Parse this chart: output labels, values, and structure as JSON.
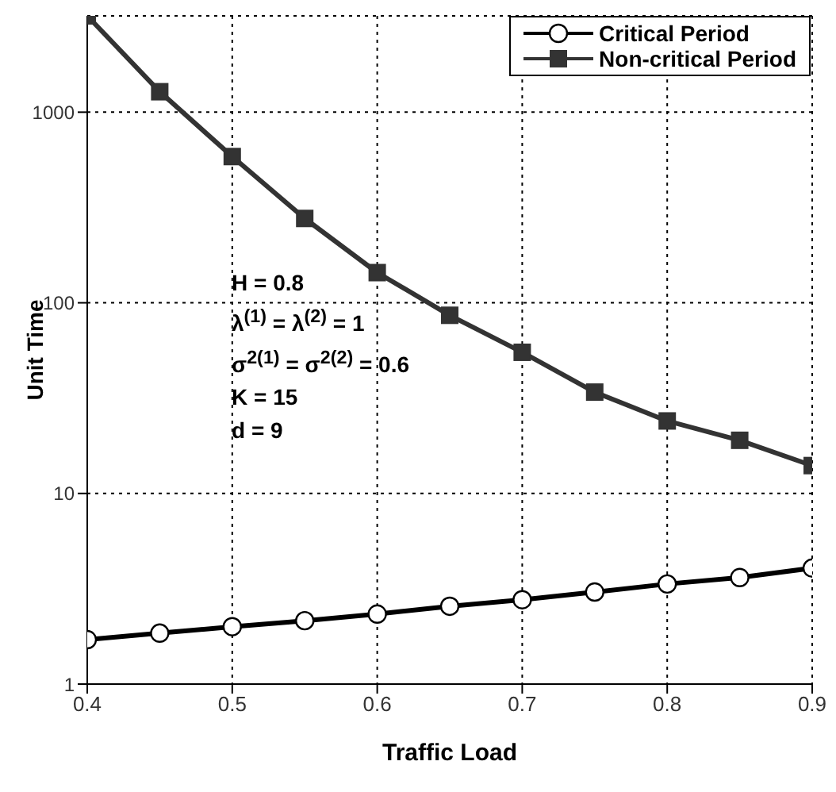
{
  "chart_data": {
    "type": "line",
    "xlabel": "Traffic Load",
    "ylabel": "Unit Time",
    "x": [
      0.4,
      0.45,
      0.5,
      0.55,
      0.6,
      0.65,
      0.7,
      0.75,
      0.8,
      0.85,
      0.9
    ],
    "series": [
      {
        "name": "Critical Period",
        "color": "#000000",
        "marker": "circle",
        "values": [
          1.71,
          1.85,
          2.0,
          2.15,
          2.33,
          2.56,
          2.77,
          3.04,
          3.35,
          3.62,
          4.06
        ]
      },
      {
        "name": "Non-critical Period",
        "color": "#333333",
        "marker": "square",
        "values": [
          3200,
          1280,
          585,
          277,
          144,
          86,
          55,
          34,
          24,
          19,
          14
        ]
      }
    ],
    "log": "y",
    "xlim": [
      0.4,
      0.9
    ],
    "xticks": [
      0.4,
      0.5,
      0.6,
      0.7,
      0.8,
      0.9
    ],
    "ylim": [
      1,
      3200
    ],
    "yticks": [
      1,
      10,
      100,
      1000
    ],
    "grid": true,
    "legend": "top right",
    "annotations": [
      "H = 0.8",
      "λ$^{(1)}$ = λ$^{(2)}$ = 1",
      "σ$^{2(1)}$ = σ$^{2(2)}$ = 0.6",
      "K = 15",
      "d = 9"
    ]
  }
}
